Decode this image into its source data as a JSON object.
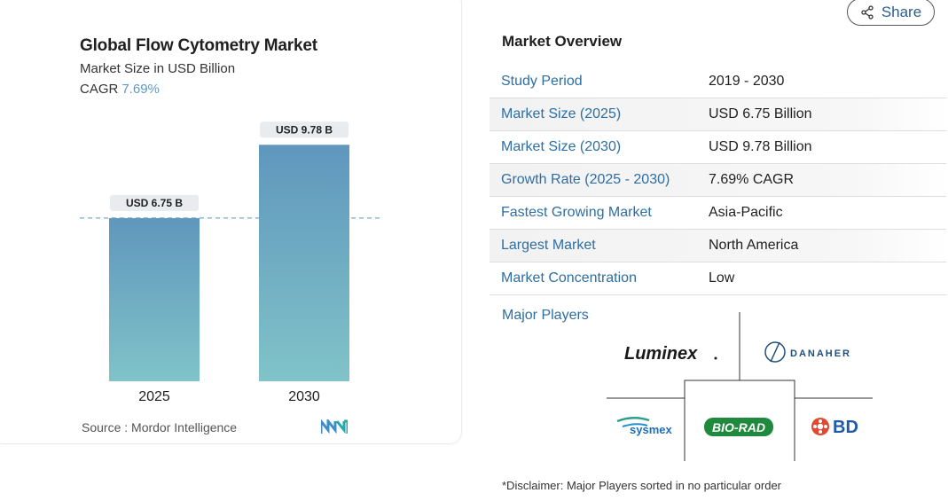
{
  "chart_title": "Global Flow Cytometry Market",
  "chart_subtitle": "Market Size in USD Billion",
  "cagr_label": "CAGR",
  "cagr_value": "7.69%",
  "source_text": "Source :  Mordor Intelligence",
  "share_label": "Share",
  "overview_title": "Market Overview",
  "overview_rows": [
    {
      "label": "Study Period",
      "value": "2019 - 2030"
    },
    {
      "label": "Market Size (2025)",
      "value": "USD 6.75 Billion"
    },
    {
      "label": "Market Size (2030)",
      "value": "USD 9.78 Billion"
    },
    {
      "label": "Growth Rate (2025 - 2030)",
      "value": "7.69% CAGR"
    },
    {
      "label": "Fastest Growing Market",
      "value": "Asia-Pacific"
    },
    {
      "label": "Largest Market",
      "value": "North America"
    },
    {
      "label": "Market Concentration",
      "value": "Low"
    }
  ],
  "major_players_label": "Major Players",
  "players": [
    "Luminex",
    "DANAHER",
    "sysmex",
    "BIO-RAD",
    "BD"
  ],
  "disclaimer": "*Disclaimer: Major Players sorted in no particular order",
  "chart_data": {
    "type": "bar",
    "categories": [
      "2025",
      "2030"
    ],
    "values": [
      6.75,
      9.78
    ],
    "data_labels": [
      "USD 6.75 B",
      "USD 9.78 B"
    ],
    "title": "Global Flow Cytometry Market",
    "ylabel": "Market Size in USD Billion",
    "ylim": [
      0,
      11
    ],
    "grid": false,
    "reference_line": 6.75,
    "colors": {
      "bar_top": "#5f97bd",
      "bar_bottom": "#80c3c8",
      "reference": "#8fb8d3",
      "label_bg": "#e8ecef"
    }
  },
  "colors": {
    "accent": "#2d6ea3",
    "cagr": "#5b9bc4"
  }
}
